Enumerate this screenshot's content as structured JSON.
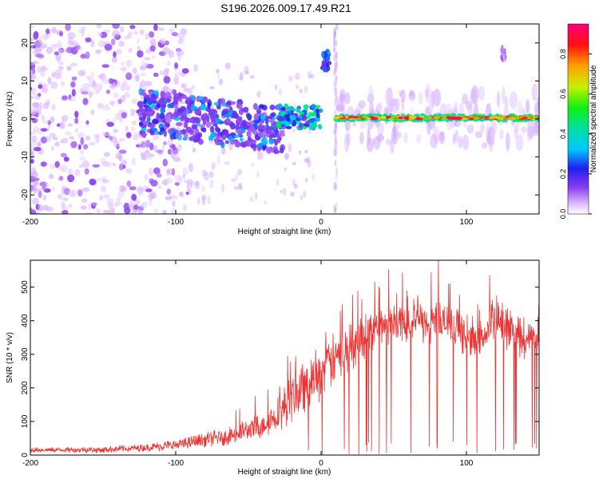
{
  "title": "S196.2026.009.17.49.R21",
  "colors": {
    "frame": "#000000",
    "signal": "#ee3333",
    "bg": "#ffffff"
  },
  "chart_data": [
    {
      "type": "heatmap",
      "title": "S196.2026.009.17.49.R21",
      "xlabel": "Height of straight line (km)",
      "ylabel": "Frequency (Hz)",
      "xlim": [
        -200,
        150
      ],
      "ylim": [
        -25,
        25
      ],
      "xticks": [
        -200,
        -100,
        0,
        100
      ],
      "xtick_labels": [
        "-200",
        "-100",
        "0",
        "100"
      ],
      "yticks": [
        -20,
        -10,
        0,
        10,
        20
      ],
      "ytick_labels": [
        "-20",
        "-10",
        "0",
        "10",
        "20"
      ],
      "colorbar": {
        "label": "Normalized spectral amplitude",
        "range": [
          0,
          0.95
        ],
        "ticks": [
          0.0,
          0.2,
          0.4,
          0.6,
          0.8
        ],
        "tick_labels": [
          "0.0",
          "0.2",
          "0.4",
          "0.6",
          "0.8"
        ],
        "colormap": "rainbow (white-violet-blue-cyan-green-yellow-orange-red-magenta)"
      },
      "features": [
        {
          "name": "diffuse noise scatter",
          "x_range": [
            -200,
            -120
          ],
          "freq_range": [
            -25,
            25
          ],
          "amplitude": 0.05
        },
        {
          "name": "broadening trace",
          "x_range": [
            -125,
            -25
          ],
          "freq_center": -3,
          "amplitude": 0.2
        },
        {
          "name": "pre-occultation trace",
          "x_range": [
            -25,
            0
          ],
          "freq_center": 0.5,
          "amplitude": 0.5
        },
        {
          "name": "gap",
          "x_range": [
            0,
            10
          ],
          "amplitude": 0
        },
        {
          "name": "spike near 0 km",
          "x": 2,
          "freq_center": 15,
          "amplitude": 0.3
        },
        {
          "name": "carrier line",
          "x_range": [
            10,
            150
          ],
          "freq_center": 0.3,
          "amplitude": 0.9
        },
        {
          "name": "spike near 125 km",
          "x": 125,
          "freq_center": 17,
          "amplitude": 0.1
        }
      ]
    },
    {
      "type": "line",
      "xlabel": "Height of straight line (km)",
      "ylabel": "SNR (10 * v/v)",
      "xlim": [
        -200,
        150
      ],
      "ylim": [
        0,
        580
      ],
      "xticks": [
        -200,
        -100,
        0,
        100
      ],
      "xtick_labels": [
        "-200",
        "-100",
        "0",
        "100"
      ],
      "yticks": [
        0,
        100,
        200,
        300,
        400,
        500
      ],
      "ytick_labels": [
        "0",
        "100",
        "200",
        "300",
        "400",
        "500"
      ],
      "series": [
        {
          "name": "SNR",
          "color": "#ee3333",
          "envelope_x": [
            -200,
            -150,
            -120,
            -100,
            -80,
            -60,
            -40,
            -30,
            -20,
            -10,
            0,
            10,
            20,
            30,
            40,
            50,
            60,
            70,
            80,
            90,
            100,
            110,
            120,
            130,
            140,
            150
          ],
          "envelope_mean": [
            15,
            16,
            22,
            30,
            45,
            60,
            90,
            120,
            170,
            210,
            250,
            290,
            320,
            360,
            385,
            395,
            400,
            390,
            400,
            380,
            350,
            345,
            405,
            370,
            335,
            360
          ],
          "envelope_spread": [
            8,
            10,
            12,
            18,
            22,
            30,
            40,
            55,
            75,
            80,
            90,
            80,
            75,
            75,
            60,
            65,
            70,
            70,
            75,
            60,
            55,
            60,
            75,
            65,
            55,
            70
          ]
        }
      ]
    }
  ]
}
